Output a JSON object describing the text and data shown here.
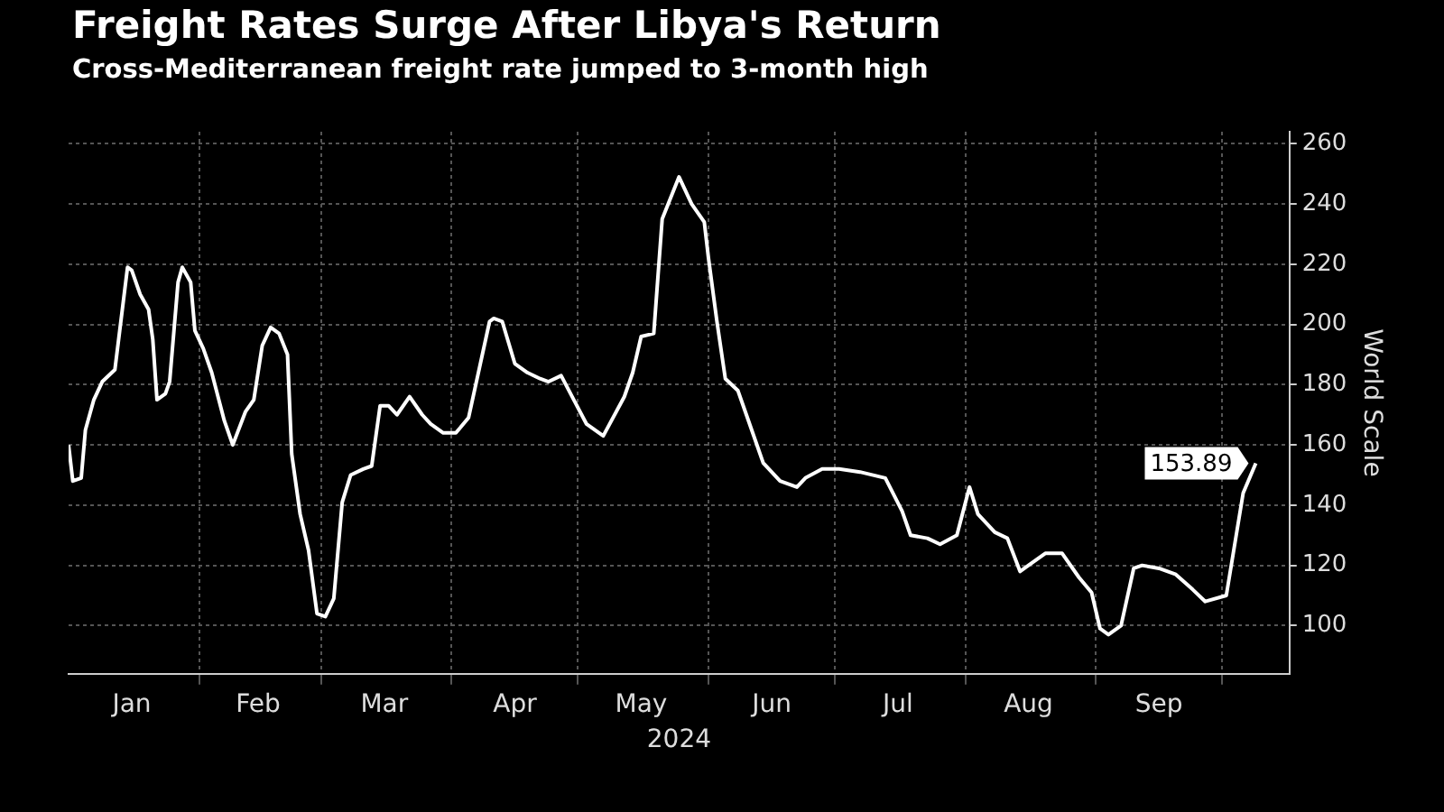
{
  "chart_data": {
    "type": "line",
    "title": "Freight Rates Surge After Libya's Return",
    "subtitle": "Cross-Mediterranean freight rate jumped to 3-month high",
    "xlabel": "2024",
    "ylabel": "World Scale",
    "x": [
      "2024-01-01",
      "2024-01-02",
      "2024-01-04",
      "2024-01-05",
      "2024-01-07",
      "2024-01-09",
      "2024-01-12",
      "2024-01-15",
      "2024-01-16",
      "2024-01-18",
      "2024-01-20",
      "2024-01-21",
      "2024-01-22",
      "2024-01-24",
      "2024-01-25",
      "2024-01-27",
      "2024-01-28",
      "2024-01-30",
      "2024-01-31",
      "2024-02-02",
      "2024-02-04",
      "2024-02-07",
      "2024-02-09",
      "2024-02-12",
      "2024-02-14",
      "2024-02-16",
      "2024-02-18",
      "2024-02-20",
      "2024-02-22",
      "2024-02-23",
      "2024-02-25",
      "2024-02-27",
      "2024-02-29",
      "2024-03-02",
      "2024-03-04",
      "2024-03-06",
      "2024-03-08",
      "2024-03-11",
      "2024-03-13",
      "2024-03-15",
      "2024-03-17",
      "2024-03-19",
      "2024-03-22",
      "2024-03-25",
      "2024-03-27",
      "2024-03-30",
      "2024-04-02",
      "2024-04-05",
      "2024-04-10",
      "2024-04-11",
      "2024-04-13",
      "2024-04-16",
      "2024-04-19",
      "2024-04-22",
      "2024-04-24",
      "2024-04-27",
      "2024-04-30",
      "2024-05-03",
      "2024-05-07",
      "2024-05-12",
      "2024-05-14",
      "2024-05-16",
      "2024-05-19",
      "2024-05-21",
      "2024-05-25",
      "2024-05-28",
      "2024-05-31",
      "2024-06-01",
      "2024-06-03",
      "2024-06-05",
      "2024-06-08",
      "2024-06-10",
      "2024-06-14",
      "2024-06-18",
      "2024-06-22",
      "2024-06-24",
      "2024-06-28",
      "2024-07-02",
      "2024-07-07",
      "2024-07-13",
      "2024-07-17",
      "2024-07-19",
      "2024-07-23",
      "2024-07-26",
      "2024-07-30",
      "2024-08-02",
      "2024-08-04",
      "2024-08-08",
      "2024-08-11",
      "2024-08-14",
      "2024-08-16",
      "2024-08-20",
      "2024-08-24",
      "2024-08-28",
      "2024-08-31",
      "2024-09-02",
      "2024-09-04",
      "2024-09-07",
      "2024-09-10",
      "2024-09-12",
      "2024-09-16",
      "2024-09-20",
      "2024-09-24",
      "2024-09-27",
      "2024-10-02",
      "2024-10-06",
      "2024-10-09"
    ],
    "values": [
      160,
      148,
      149,
      165,
      175,
      181,
      185,
      219,
      218,
      210,
      205,
      195,
      175,
      177,
      181,
      214,
      219,
      214,
      198,
      192,
      184,
      168,
      160,
      171,
      175,
      193,
      199,
      197,
      190,
      157,
      137,
      125,
      104,
      103,
      109,
      141,
      150,
      152,
      153,
      173,
      173,
      170,
      176,
      170,
      167,
      164,
      164,
      169,
      201,
      202,
      201,
      187,
      184,
      182,
      181,
      183,
      175,
      167,
      163,
      176,
      184,
      196,
      197,
      235,
      249,
      240,
      234,
      222,
      201,
      182,
      178,
      170,
      154,
      148,
      146,
      149,
      152,
      152,
      151,
      149,
      138,
      130,
      129,
      127,
      130,
      146,
      137,
      131,
      129,
      118,
      120,
      124,
      124,
      116,
      111,
      99,
      97,
      100,
      119,
      120,
      119,
      117,
      112,
      108,
      110,
      144,
      153.89
    ],
    "color": "#ffffff",
    "marker": "none",
    "line_style": "solid",
    "grid": true,
    "xlim": [
      "2024-01-01",
      "2024-10-17"
    ],
    "xticks": [
      {
        "value": "2024-01-16",
        "label": "Jan"
      },
      {
        "value": "2024-02-01",
        "label": null
      },
      {
        "value": "2024-02-15",
        "label": "Feb"
      },
      {
        "value": "2024-03-01",
        "label": null
      },
      {
        "value": "2024-03-16",
        "label": "Mar"
      },
      {
        "value": "2024-04-01",
        "label": null
      },
      {
        "value": "2024-04-16",
        "label": "Apr"
      },
      {
        "value": "2024-05-01",
        "label": null
      },
      {
        "value": "2024-05-16",
        "label": "May"
      },
      {
        "value": "2024-06-01",
        "label": null
      },
      {
        "value": "2024-06-16",
        "label": "Jun"
      },
      {
        "value": "2024-07-01",
        "label": null
      },
      {
        "value": "2024-07-16",
        "label": "Jul"
      },
      {
        "value": "2024-08-01",
        "label": null
      },
      {
        "value": "2024-08-16",
        "label": "Aug"
      },
      {
        "value": "2024-09-01",
        "label": null
      },
      {
        "value": "2024-09-16",
        "label": "Sep"
      },
      {
        "value": "2024-10-01",
        "label": null
      }
    ],
    "ylim": [
      84,
      264
    ],
    "yticks": [
      100,
      120,
      140,
      160,
      180,
      200,
      220,
      240,
      260
    ],
    "annotations": [
      {
        "text": "153.89",
        "x": "2024-10-09",
        "y": 153.89
      }
    ]
  }
}
